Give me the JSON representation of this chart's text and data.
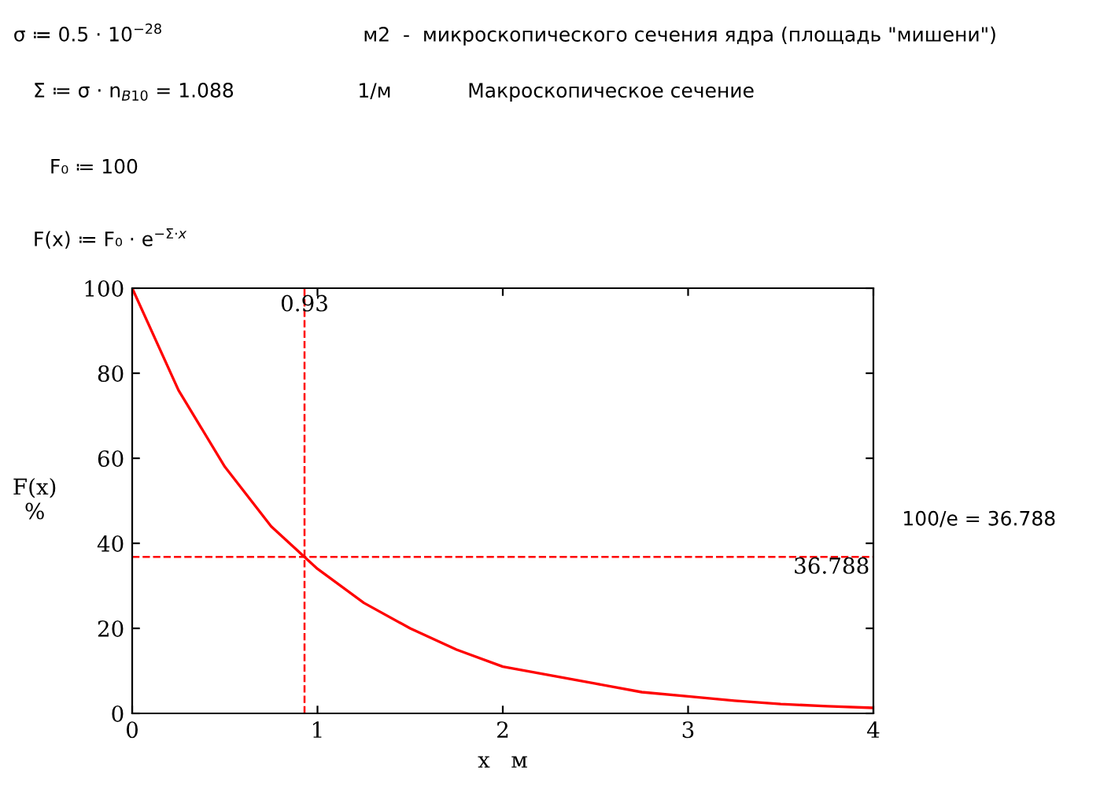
{
  "chart_data": {
    "type": "line",
    "xlabel": "x   м",
    "ylabel": "F(x)\n%",
    "x": [
      0,
      0.25,
      0.5,
      0.75,
      1,
      1.25,
      1.5,
      1.75,
      2,
      2.25,
      2.5,
      2.75,
      3,
      3.25,
      3.5,
      3.75,
      4
    ],
    "series": [
      {
        "color": "#ff0000",
        "values": [
          100,
          76,
          58,
          44,
          34,
          26,
          20,
          15,
          11,
          9,
          7,
          5,
          4,
          3,
          2.2,
          1.7,
          1.3
        ]
      }
    ],
    "xlim": [
      0,
      4
    ],
    "ylim": [
      0,
      100
    ],
    "xticks": [
      0,
      1,
      2,
      3,
      4
    ],
    "yticks": [
      0,
      20,
      40,
      60,
      80,
      100
    ],
    "grid": false,
    "legend": false,
    "marker": "none",
    "line_style": "solid",
    "ref_lines": [
      {
        "axis": "x",
        "value": 0.93,
        "label": "0.93",
        "color": "#ff0000",
        "line_style": "dashed"
      },
      {
        "axis": "y",
        "value": 36.788,
        "label": "36.788",
        "color": "#ff0000",
        "line_style": "dashed"
      }
    ],
    "annotations": [
      "σ ≔ 0.5 · 10$^{−28}$",
      "м2  -  микроскопического сечения ядра (площадь \"мишени\")",
      "Σ ≔ σ · n$_{B10}$ = 1.088",
      "1/м",
      "Макроскопическое сечение",
      "F₀ ≔ 100",
      "F(x) ≔ F₀ · e$^{−Σ·x}$",
      "100/e = 36.788"
    ]
  }
}
